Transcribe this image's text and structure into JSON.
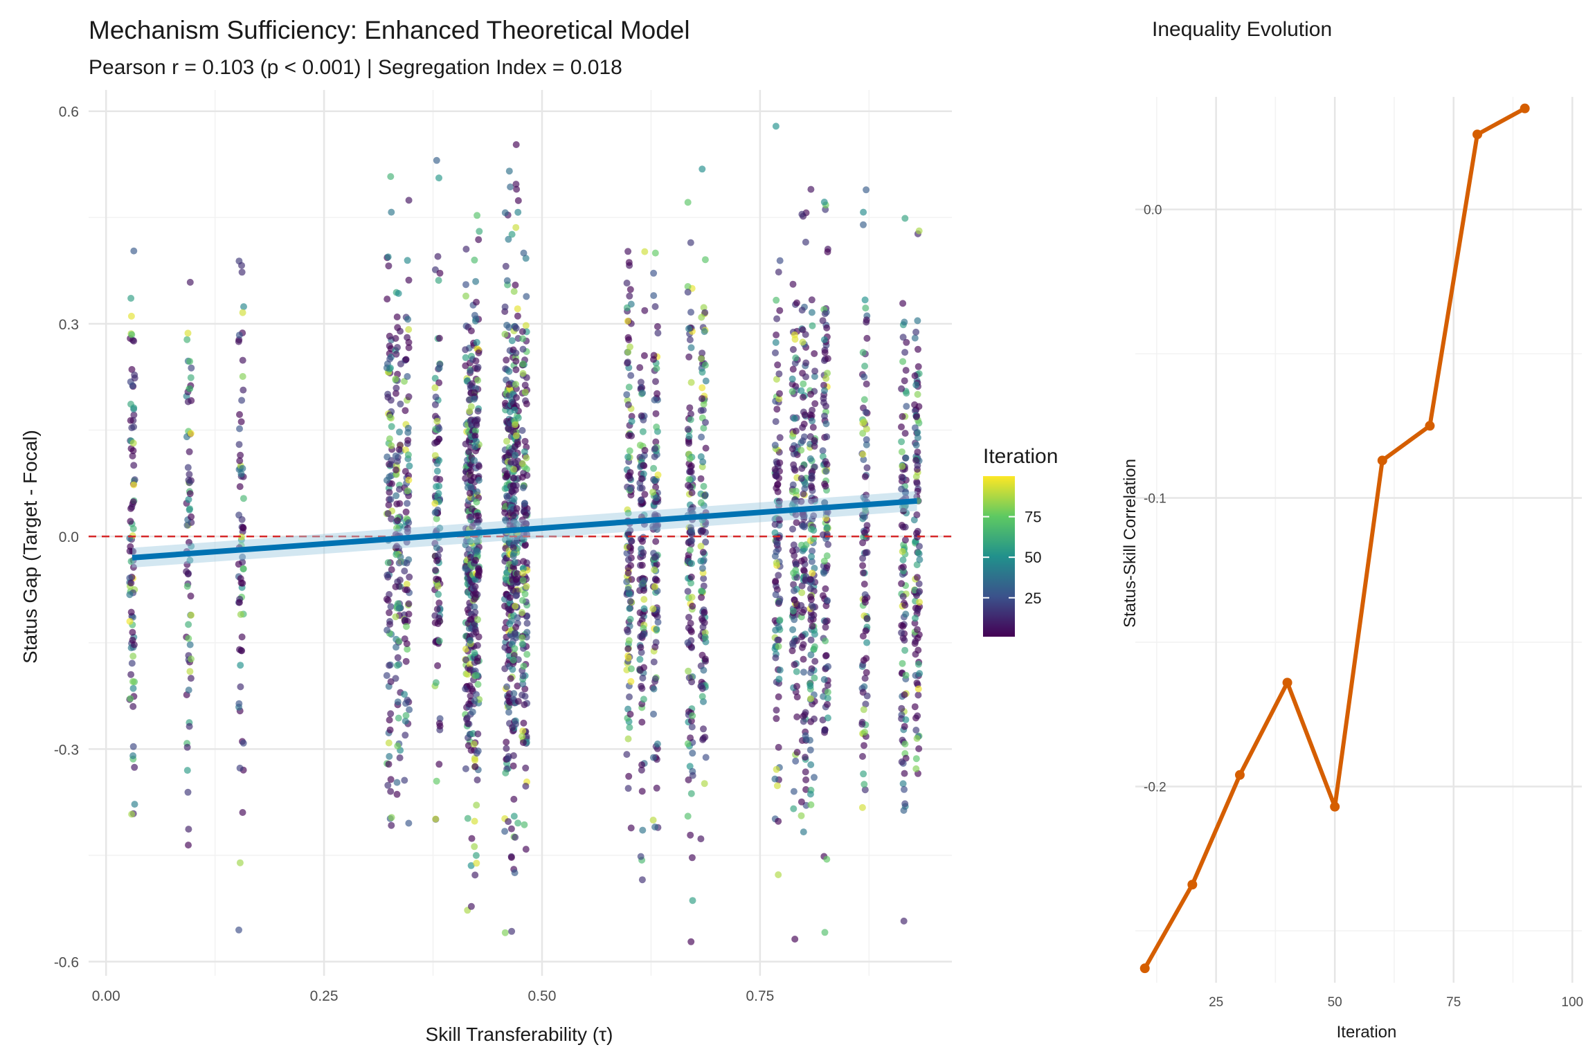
{
  "chart_data": [
    {
      "type": "scatter",
      "title": "Mechanism Sufficiency: Enhanced Theoretical Model",
      "subtitle": "Pearson r = 0.103 (p < 0.001) | Segregation Index = 0.018",
      "xlabel": "Skill Transferability (τ)",
      "ylabel": "Status Gap (Target - Focal)",
      "xlim": [
        -0.02,
        0.97
      ],
      "ylim": [
        -0.62,
        0.63
      ],
      "x_ticks": [
        "0.00",
        "0.25",
        "0.50",
        "0.75"
      ],
      "x_tick_values": [
        0,
        0.25,
        0.5,
        0.75
      ],
      "y_ticks": [
        "-0.6",
        "-0.3",
        "0.0",
        "0.3",
        "0.6"
      ],
      "y_tick_values": [
        -0.6,
        -0.3,
        0,
        0.3,
        0.6
      ],
      "grid": true,
      "x_columns": [
        0.03,
        0.095,
        0.155,
        0.325,
        0.335,
        0.345,
        0.38,
        0.415,
        0.42,
        0.425,
        0.46,
        0.465,
        0.47,
        0.48,
        0.6,
        0.615,
        0.63,
        0.67,
        0.685,
        0.77,
        0.79,
        0.8,
        0.81,
        0.825,
        0.87,
        0.915,
        0.93
      ],
      "color_legend": {
        "title": "Iteration",
        "ticks": [
          "25",
          "50",
          "75"
        ],
        "tick_values": [
          25,
          50,
          75
        ],
        "range": [
          1,
          100
        ],
        "palette": [
          "#440154",
          "#3b528b",
          "#21918c",
          "#5ec962",
          "#fde725"
        ]
      },
      "reference_line": {
        "y": 0,
        "style": "dashed",
        "color": "#d62728"
      },
      "fit_line": {
        "x": [
          0.03,
          0.93
        ],
        "y": [
          -0.03,
          0.05
        ],
        "color": "#0072b2",
        "band_color": "#9ecae1"
      }
    },
    {
      "type": "line",
      "title": "Inequality Evolution",
      "xlabel": "Iteration",
      "ylabel": "Status-Skill Correlation",
      "x": [
        10,
        20,
        30,
        40,
        50,
        60,
        70,
        80,
        90
      ],
      "y": [
        -0.263,
        -0.234,
        -0.196,
        -0.164,
        -0.207,
        -0.087,
        -0.075,
        0.026,
        0.035
      ],
      "xlim": [
        8,
        102
      ],
      "ylim": [
        -0.268,
        0.039
      ],
      "x_ticks": [
        "25",
        "50",
        "75",
        "100"
      ],
      "x_tick_values": [
        25,
        50,
        75,
        100
      ],
      "y_ticks": [
        "0.0",
        "-0.1",
        "-0.2"
      ],
      "y_tick_values": [
        0,
        -0.1,
        -0.2
      ],
      "color": "#d55e00",
      "grid": true
    }
  ]
}
